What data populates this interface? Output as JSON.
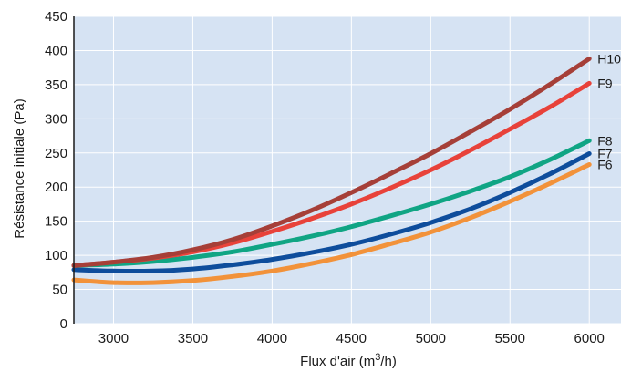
{
  "chart_data": {
    "type": "line",
    "xlabel": "Flux d'air (m",
    "xlabel_sup": "3",
    "xlabel_end": "/h)",
    "ylabel": "Résistance initiale (Pa)",
    "xlim": [
      2750,
      6200
    ],
    "ylim": [
      0,
      450
    ],
    "x_ticks": [
      3000,
      3500,
      4000,
      4500,
      5000,
      5500,
      6000
    ],
    "y_ticks": [
      0,
      50,
      100,
      150,
      200,
      250,
      300,
      350,
      400,
      450
    ],
    "grid": true,
    "colors": {
      "plot_background": "#d6e3f3",
      "grid": "#ffffff"
    },
    "x": [
      2750,
      3000,
      3250,
      3500,
      3750,
      4000,
      4250,
      4500,
      4750,
      5000,
      5250,
      5500,
      5750,
      6000
    ],
    "series": [
      {
        "name": "H10",
        "color": "#a63f38",
        "values": [
          85,
          90,
          97,
          108,
          123,
          143,
          166,
          192,
          220,
          249,
          281,
          314,
          350,
          388
        ]
      },
      {
        "name": "F9",
        "color": "#e8423a",
        "values": [
          85,
          90,
          96,
          105,
          118,
          135,
          154,
          175,
          199,
          225,
          254,
          285,
          317,
          352
        ]
      },
      {
        "name": "F8",
        "color": "#10a584",
        "values": [
          85,
          87,
          91,
          97,
          105,
          116,
          128,
          142,
          158,
          175,
          194,
          215,
          240,
          268
        ]
      },
      {
        "name": "F7",
        "color": "#0e4d9c",
        "values": [
          79,
          77,
          77,
          80,
          86,
          94,
          104,
          116,
          131,
          148,
          168,
          192,
          219,
          249
        ]
      },
      {
        "name": "F6",
        "color": "#f2923a",
        "values": [
          64,
          60,
          60,
          63,
          69,
          77,
          88,
          101,
          117,
          134,
          155,
          179,
          205,
          233
        ]
      }
    ]
  }
}
